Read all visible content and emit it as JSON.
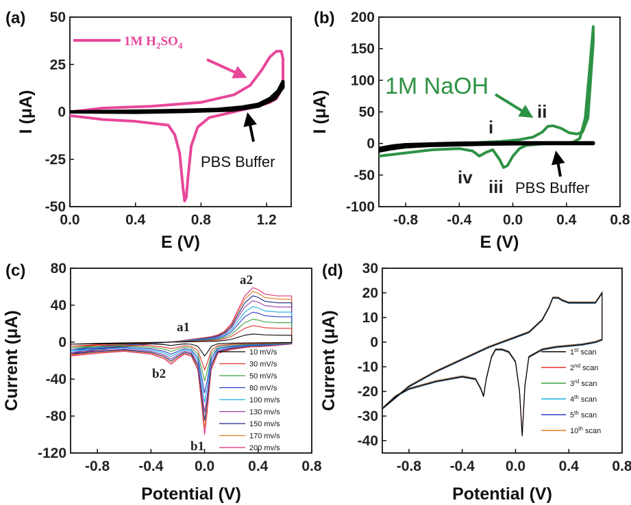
{
  "panels": [
    {
      "id": "a",
      "label": "(a)"
    },
    {
      "id": "b",
      "label": "(b)"
    },
    {
      "id": "c",
      "label": "(c)"
    },
    {
      "id": "d",
      "label": "(d)"
    }
  ],
  "colors": {
    "h2so4": "#e8479a",
    "naoh": "#2e9244",
    "pbs": "#000000"
  },
  "chart_data": [
    {
      "panel": "a",
      "type": "line",
      "xlabel": "E (V)",
      "ylabel": "I (μA)",
      "xlim": [
        0.0,
        1.35
      ],
      "ylim": [
        -50,
        50
      ],
      "xticks": [
        "0.0",
        "0.4",
        "0.8",
        "1.2"
      ],
      "yticks": [
        "-50",
        "-25",
        "0",
        "25",
        "50"
      ],
      "annotations": {
        "h2so4_label": "1M H2SO4",
        "pbs_label": "PBS Buffer"
      },
      "series": [
        {
          "name": "1M H2SO4",
          "color": "#e8479a",
          "x": [
            0.0,
            0.2,
            0.5,
            0.8,
            1.0,
            1.1,
            1.17,
            1.22,
            1.26,
            1.29,
            1.3,
            1.3,
            1.28,
            1.26,
            1.22,
            1.15,
            1.05,
            0.95,
            0.85,
            0.78,
            0.74,
            0.72,
            0.71,
            0.7,
            0.69,
            0.67,
            0.64,
            0.6,
            0.5,
            0.4,
            0.2,
            0.0
          ],
          "y": [
            0,
            2,
            3,
            5,
            9,
            14,
            22,
            29,
            32,
            32,
            28,
            16,
            10,
            7,
            5,
            3,
            1,
            -1,
            -3,
            -8,
            -18,
            -35,
            -45,
            -47,
            -40,
            -22,
            -12,
            -7,
            -6,
            -5,
            -4,
            -2
          ]
        },
        {
          "name": "PBS Buffer",
          "color": "#000000",
          "x": [
            0.0,
            0.3,
            0.6,
            0.9,
            1.05,
            1.15,
            1.22,
            1.27,
            1.3,
            1.3,
            1.25,
            1.15,
            1.0,
            0.7,
            0.4,
            0.0
          ],
          "y": [
            0,
            0.3,
            0.6,
            1.3,
            2.5,
            4,
            7,
            11,
            16,
            13,
            7,
            3,
            1,
            0.2,
            -0.2,
            0
          ]
        }
      ]
    },
    {
      "panel": "b",
      "type": "line",
      "xlabel": "E (V)",
      "ylabel": "I (μA)",
      "xlim": [
        -1.0,
        0.8
      ],
      "ylim": [
        -100,
        200
      ],
      "xticks": [
        "-0.8",
        "-0.4",
        "0.0",
        "0.4",
        "0.8"
      ],
      "yticks": [
        "-100",
        "-50",
        "0",
        "50",
        "100",
        "150",
        "200"
      ],
      "annotations": {
        "naoh_label": "1M NaOH",
        "pbs_label": "PBS Buffer",
        "peaks": [
          "i",
          "ii",
          "iii",
          "iv"
        ]
      },
      "series": [
        {
          "name": "1M NaOH",
          "color": "#2e9244",
          "x": [
            -1.0,
            -0.8,
            -0.6,
            -0.4,
            -0.3,
            -0.25,
            -0.2,
            -0.15,
            -0.1,
            -0.07,
            -0.04,
            0.0,
            0.05,
            0.1,
            0.2,
            0.25,
            0.3,
            0.35,
            0.45,
            0.5,
            0.54,
            0.57,
            0.6,
            0.6,
            0.56,
            0.52,
            0.48,
            0.42,
            0.36,
            0.3,
            0.26,
            0.22,
            0.15,
            0.05,
            -0.1,
            -0.2,
            -0.4,
            -0.6,
            -0.8,
            -1.0
          ],
          "y": [
            -20,
            -15,
            -10,
            -8,
            -12,
            -20,
            -14,
            -10,
            -25,
            -38,
            -35,
            -20,
            -8,
            -3,
            -1,
            0,
            0,
            0,
            2,
            8,
            40,
            110,
            185,
            160,
            40,
            18,
            15,
            17,
            24,
            28,
            27,
            18,
            10,
            6,
            3,
            2,
            0,
            -3,
            -6,
            -10
          ]
        },
        {
          "name": "PBS Buffer",
          "color": "#000000",
          "x": [
            -1.0,
            -0.9,
            -0.8,
            -0.6,
            -0.4,
            -0.2,
            0.0,
            0.2,
            0.4,
            0.6,
            0.6,
            0.4,
            0.0,
            -0.4,
            -0.8,
            -0.9,
            -1.0
          ],
          "y": [
            -12,
            -8,
            -5,
            -3,
            -2,
            -1,
            -0.5,
            0,
            0,
            0,
            1,
            1,
            1,
            0.5,
            -2,
            -4,
            -8
          ]
        }
      ]
    },
    {
      "panel": "c",
      "type": "line",
      "xlabel": "Potential (V)",
      "ylabel": "Current (μA)",
      "xlim": [
        -1.0,
        0.8
      ],
      "ylim": [
        -120,
        80
      ],
      "xticks": [
        "-0.8",
        "-0.4",
        "0.0",
        "0.4",
        "0.8"
      ],
      "yticks": [
        "-120",
        "-80",
        "-40",
        "0",
        "40",
        "80"
      ],
      "annotations": {
        "peaks": [
          "a1",
          "a2",
          "b1",
          "b2"
        ]
      },
      "legend": {
        "position": "bottom-right"
      },
      "series": [
        {
          "name": "10 mV/s",
          "color": "#000000",
          "scale": 0.15
        },
        {
          "name": "30 mV/s",
          "color": "#e0302a",
          "scale": 0.3
        },
        {
          "name": "50 mV/s",
          "color": "#3ca03c",
          "scale": 0.42
        },
        {
          "name": "80 mV/s",
          "color": "#2a3cc8",
          "scale": 0.55
        },
        {
          "name": "100 mv/s",
          "color": "#18aee0",
          "scale": 0.65
        },
        {
          "name": "130 mv/s",
          "color": "#9a3aa0",
          "scale": 0.76
        },
        {
          "name": "150 mv/s",
          "color": "#1c2880",
          "scale": 0.85
        },
        {
          "name": "170 mv/s",
          "color": "#e07820",
          "scale": 0.93
        },
        {
          "name": "200 mv/s",
          "color": "#e02878",
          "scale": 1.0
        }
      ],
      "base_curve": {
        "x": [
          -1.0,
          -0.8,
          -0.6,
          -0.4,
          -0.3,
          -0.25,
          -0.2,
          -0.15,
          -0.1,
          -0.05,
          -0.02,
          0.0,
          0.02,
          0.05,
          0.1,
          0.2,
          0.3,
          0.35,
          0.4,
          0.5,
          0.65,
          0.65,
          0.55,
          0.45,
          0.4,
          0.36,
          0.3,
          0.25,
          0.2,
          0.15,
          0.1,
          0.05,
          0.0,
          -0.1,
          -0.2,
          -0.4,
          -0.6,
          -0.8,
          -1.0
        ],
        "y": [
          -15,
          -12,
          -10,
          -13,
          -18,
          -24,
          -18,
          -13,
          -15,
          -30,
          -70,
          -100,
          -75,
          -30,
          -12,
          -8,
          -6,
          -5,
          -5,
          -4,
          -2,
          50,
          50,
          52,
          57,
          59,
          50,
          35,
          20,
          12,
          8,
          6,
          5,
          3,
          1,
          -2,
          -5,
          -9,
          -15
        ]
      }
    },
    {
      "panel": "d",
      "type": "line",
      "xlabel": "Potential (V)",
      "ylabel": "Current (μA)",
      "xlim": [
        -1.0,
        0.8
      ],
      "ylim": [
        -45,
        30
      ],
      "xticks": [
        "-0.8",
        "-0.4",
        "0.0",
        "0.4",
        "0.8"
      ],
      "yticks": [
        "-40",
        "-30",
        "-20",
        "-10",
        "0",
        "10",
        "20",
        "30"
      ],
      "legend": {
        "position": "bottom-right"
      },
      "series": [
        {
          "name": "1st scan",
          "num": "1",
          "sup": "st",
          "color": "#000000",
          "offset": 0.0
        },
        {
          "name": "2nd scan",
          "num": "2",
          "sup": "nd",
          "color": "#e0302a",
          "offset": 0.4
        },
        {
          "name": "3rd scan",
          "num": "3",
          "sup": "rd",
          "color": "#3ca03c",
          "offset": -0.4
        },
        {
          "name": "4th scan",
          "num": "4",
          "sup": "th",
          "color": "#18aee0",
          "offset": 0.8
        },
        {
          "name": "5th scan",
          "num": "5",
          "sup": "th",
          "color": "#2a3cc8",
          "offset": -0.8
        },
        {
          "name": "10th scan",
          "num": "10",
          "sup": "th",
          "color": "#e07820",
          "offset": 1.2
        }
      ],
      "base_curve": {
        "x": [
          -1.0,
          -0.9,
          -0.8,
          -0.6,
          -0.4,
          -0.3,
          -0.26,
          -0.24,
          -0.22,
          -0.18,
          -0.15,
          -0.1,
          -0.05,
          0.0,
          0.03,
          0.05,
          0.07,
          0.1,
          0.2,
          0.3,
          0.4,
          0.5,
          0.6,
          0.65,
          0.65,
          0.6,
          0.5,
          0.4,
          0.35,
          0.32,
          0.28,
          0.25,
          0.2,
          0.1,
          0.0,
          -0.1,
          -0.2,
          -0.4,
          -0.6,
          -0.8,
          -1.0
        ],
        "y": [
          -27,
          -22,
          -19,
          -16,
          -14,
          -15,
          -19,
          -22,
          -15,
          -6,
          -3,
          -3,
          -4,
          -8,
          -20,
          -38,
          -18,
          -6,
          -3,
          -2,
          -1.5,
          -1,
          0,
          1,
          20,
          16,
          16,
          16,
          17,
          18,
          18,
          14,
          9,
          4,
          2,
          0,
          -2,
          -7,
          -12,
          -18,
          -27
        ]
      }
    }
  ]
}
